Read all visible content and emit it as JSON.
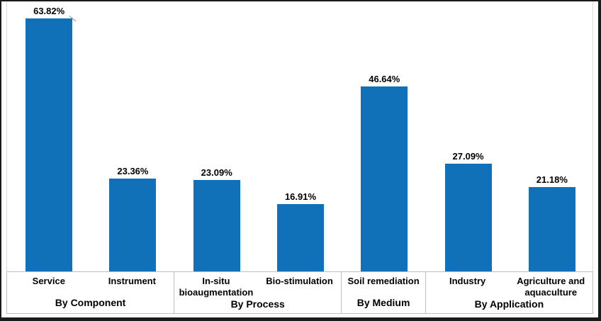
{
  "chart_data": {
    "type": "bar",
    "title": "",
    "xlabel": "",
    "ylabel": "",
    "ylim": [
      0,
      70
    ],
    "grid": false,
    "legend": false,
    "bar_color": "#1070B8",
    "categories": [
      "Service",
      "Instrument",
      "In-situ bioaugmentation",
      "Bio-stimulation",
      "Soil remediation",
      "Industry",
      "Agriculture and aquaculture"
    ],
    "values": [
      63.82,
      23.36,
      23.09,
      16.91,
      46.64,
      27.09,
      21.18
    ],
    "value_labels": [
      "63.82%",
      "23.36%",
      "23.09%",
      "16.91%",
      "46.64%",
      "27.09%",
      "21.18%"
    ],
    "groups": [
      {
        "label": "By Component",
        "categories": [
          "Service",
          "Instrument"
        ],
        "values": [
          63.82,
          23.36
        ],
        "value_labels": [
          "63.82%",
          "23.36%"
        ]
      },
      {
        "label": "By Process",
        "categories": [
          "In-situ bioaugmentation",
          "Bio-stimulation"
        ],
        "values": [
          23.09,
          16.91
        ],
        "value_labels": [
          "23.09%",
          "16.91%"
        ]
      },
      {
        "label": "By Medium",
        "categories": [
          "Soil remediation"
        ],
        "values": [
          46.64
        ],
        "value_labels": [
          "46.64%"
        ]
      },
      {
        "label": "By Application",
        "categories": [
          "Industry",
          "Agriculture and aquaculture"
        ],
        "values": [
          27.09,
          21.18
        ],
        "value_labels": [
          "27.09%",
          "21.18%"
        ]
      }
    ],
    "first_bar_has_leader_line": true
  },
  "frame": {
    "background": "#ffffff",
    "outer_border_color": "#1a1a1a",
    "axis_box_border_color": "#bfbfbf"
  }
}
